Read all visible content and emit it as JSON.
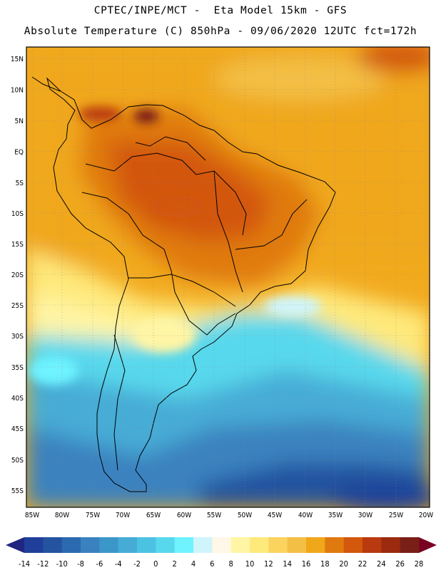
{
  "header": {
    "title_line1": "CPTEC/INPE/MCT -  Eta Model 15km - GFS",
    "title_line2": "Absolute Temperature (C) 850hPa - 09/06/2020 12UTC fct=172h"
  },
  "map": {
    "lat_labels": [
      "15N",
      "10N",
      "5N",
      "EQ",
      "5S",
      "10S",
      "15S",
      "20S",
      "25S",
      "30S",
      "35S",
      "40S",
      "45S",
      "50S",
      "55S"
    ],
    "lon_labels": [
      "85W",
      "80W",
      "75W",
      "70W",
      "65W",
      "60W",
      "55W",
      "50W",
      "45W",
      "40W",
      "35W",
      "30W",
      "25W",
      "20W"
    ]
  },
  "colorbar": {
    "labels": [
      "-14",
      "-12",
      "-10",
      "-8",
      "-6",
      "-4",
      "-2",
      "0",
      "2",
      "4",
      "6",
      "8",
      "10",
      "12",
      "14",
      "16",
      "18",
      "20",
      "22",
      "24",
      "26",
      "28"
    ],
    "colors": [
      "#1f3f9a",
      "#24539f",
      "#2b6aaf",
      "#3a82bf",
      "#3c97c9",
      "#46acd6",
      "#4cc2e2",
      "#58d8ec",
      "#6ef3ff",
      "#cff5fc",
      "#fff8e8",
      "#fff5a5",
      "#fee97b",
      "#fbd35f",
      "#f3bf45",
      "#f0a71a",
      "#e07a0f",
      "#d3570d",
      "#b93a0e",
      "#9b2a0f",
      "#7a1f17"
    ],
    "under_color": "#20267f",
    "over_color": "#790021"
  }
}
